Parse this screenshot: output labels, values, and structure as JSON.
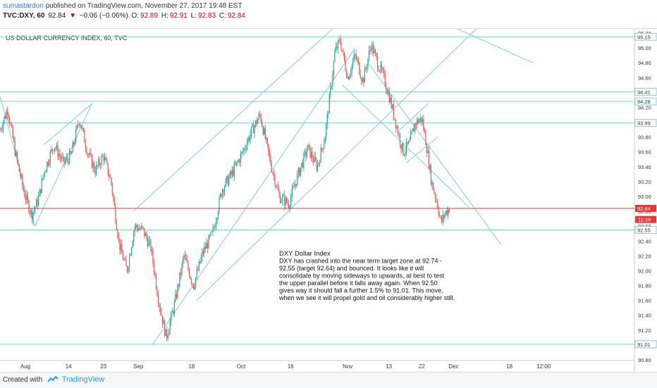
{
  "header": {
    "author": "sumastardon",
    "published_text": "published on TradingView.com, November 27, 2017 19:48 EST",
    "symbol": "TVC:DXY, 60",
    "last": "92.84",
    "change": "−0.06 (−0.06%)",
    "o_label": "O:",
    "o": "92.89",
    "h_label": "H:",
    "h": "92.91",
    "l_label": "L:",
    "l": "92.83",
    "c_label": "C:",
    "c": "92.84"
  },
  "footer": {
    "created_with": "Created with",
    "brand": "TradingView"
  },
  "colors": {
    "up": "#26a69a",
    "down": "#ef5350",
    "channel": "#7fd0d6",
    "hline": "#7fd0d6",
    "price_line": "#e53935",
    "axis_text": "#333333"
  },
  "chart_data": {
    "type": "candlestick",
    "title": "US DOLLAR CURRENCY INDEX, 60, TVC",
    "ylim": [
      90.8,
      95.2
    ],
    "y_ticks": [
      "95.20",
      "95.00",
      "94.80",
      "94.60",
      "94.40",
      "94.20",
      "94.00",
      "93.80",
      "93.60",
      "93.40",
      "93.20",
      "93.00",
      "92.80",
      "92.60",
      "92.40",
      "92.20",
      "92.00",
      "91.80",
      "91.60",
      "91.40",
      "91.20",
      "91.00",
      "90.80"
    ],
    "x_ticks": [
      {
        "label": "Aug",
        "t": 0.04
      },
      {
        "label": "14",
        "t": 0.108
      },
      {
        "label": "23",
        "t": 0.163
      },
      {
        "label": "Sep",
        "t": 0.218
      },
      {
        "label": "18",
        "t": 0.302
      },
      {
        "label": "Oct",
        "t": 0.38
      },
      {
        "label": "16",
        "t": 0.458
      },
      {
        "label": "Nov",
        "t": 0.548
      },
      {
        "label": "13",
        "t": 0.613
      },
      {
        "label": "22",
        "t": 0.665
      },
      {
        "label": "Dec",
        "t": 0.715
      },
      {
        "label": "18",
        "t": 0.803
      },
      {
        "label": "12:00",
        "t": 0.857
      }
    ],
    "price_path": [
      [
        0.0,
        93.9
      ],
      [
        0.012,
        94.18
      ],
      [
        0.025,
        93.55
      ],
      [
        0.038,
        93.05
      ],
      [
        0.05,
        92.75
      ],
      [
        0.06,
        92.95
      ],
      [
        0.07,
        93.35
      ],
      [
        0.085,
        93.7
      ],
      [
        0.1,
        93.45
      ],
      [
        0.112,
        93.55
      ],
      [
        0.125,
        94.05
      ],
      [
        0.138,
        93.6
      ],
      [
        0.15,
        93.35
      ],
      [
        0.163,
        93.55
      ],
      [
        0.175,
        93.2
      ],
      [
        0.188,
        92.35
      ],
      [
        0.2,
        92.0
      ],
      [
        0.212,
        92.6
      ],
      [
        0.225,
        92.55
      ],
      [
        0.238,
        92.3
      ],
      [
        0.25,
        91.6
      ],
      [
        0.262,
        91.1
      ],
      [
        0.275,
        91.55
      ],
      [
        0.29,
        92.2
      ],
      [
        0.305,
        91.8
      ],
      [
        0.32,
        92.25
      ],
      [
        0.335,
        92.5
      ],
      [
        0.35,
        93.1
      ],
      [
        0.365,
        93.3
      ],
      [
        0.38,
        93.55
      ],
      [
        0.395,
        93.85
      ],
      [
        0.41,
        94.1
      ],
      [
        0.425,
        93.5
      ],
      [
        0.44,
        93.0
      ],
      [
        0.455,
        92.9
      ],
      [
        0.47,
        93.3
      ],
      [
        0.485,
        93.65
      ],
      [
        0.5,
        93.4
      ],
      [
        0.512,
        93.8
      ],
      [
        0.52,
        94.35
      ],
      [
        0.528,
        94.95
      ],
      [
        0.536,
        95.1
      ],
      [
        0.548,
        94.6
      ],
      [
        0.56,
        94.9
      ],
      [
        0.572,
        94.55
      ],
      [
        0.585,
        95.05
      ],
      [
        0.595,
        94.8
      ],
      [
        0.605,
        94.6
      ],
      [
        0.615,
        94.3
      ],
      [
        0.625,
        93.95
      ],
      [
        0.635,
        93.6
      ],
      [
        0.645,
        93.7
      ],
      [
        0.655,
        94.0
      ],
      [
        0.665,
        94.05
      ],
      [
        0.672,
        93.7
      ],
      [
        0.68,
        93.2
      ],
      [
        0.688,
        92.95
      ],
      [
        0.695,
        92.65
      ],
      [
        0.702,
        92.78
      ],
      [
        0.708,
        92.84
      ]
    ],
    "key_levels": [
      {
        "label": "95.15",
        "value": 95.15
      },
      {
        "label": "94.41",
        "value": 94.41
      },
      {
        "label": "94.28",
        "value": 94.28
      },
      {
        "label": "93.99",
        "value": 93.99
      },
      {
        "label": "92.55",
        "value": 92.55
      },
      {
        "label": "91.01",
        "value": 91.01
      }
    ],
    "last_price": {
      "label": "92.84",
      "value": 92.84
    },
    "countdown": {
      "label": "11:16",
      "value": 92.69
    },
    "annotation": {
      "heading": "DXY  Dollar Index",
      "lines": [
        "DXY has crashed into the near term target zone at 92.74 -",
        "92.55 (target 92.64) and bounced. It looks like it will",
        "consolidate by moving sideways to upwards, at best to test",
        "the upper parallel before it falls away again. When 92.50",
        "gives way it should fall a further 1.5% to 91.01. This move,",
        "when we see it will propel gold and oil considerably higher still."
      ]
    },
    "trend_lines": [
      [
        [
          0.0,
          94.35
        ],
        [
          0.055,
          92.6
        ]
      ],
      [
        [
          0.055,
          92.6
        ],
        [
          0.145,
          94.25
        ]
      ],
      [
        [
          0.07,
          93.7
        ],
        [
          0.145,
          94.25
        ]
      ],
      [
        [
          0.24,
          91.0
        ],
        [
          0.56,
          95.0
        ]
      ],
      [
        [
          0.21,
          92.8
        ],
        [
          0.555,
          95.5
        ]
      ],
      [
        [
          0.31,
          91.6
        ],
        [
          0.78,
          95.5
        ]
      ],
      [
        [
          0.54,
          94.5
        ],
        [
          0.74,
          92.85
        ]
      ],
      [
        [
          0.58,
          94.8
        ],
        [
          0.79,
          92.35
        ]
      ],
      [
        [
          0.71,
          95.3
        ],
        [
          0.84,
          94.8
        ]
      ],
      [
        [
          0.63,
          93.9
        ],
        [
          0.675,
          94.25
        ]
      ],
      [
        [
          0.64,
          93.45
        ],
        [
          0.69,
          93.8
        ]
      ]
    ]
  }
}
